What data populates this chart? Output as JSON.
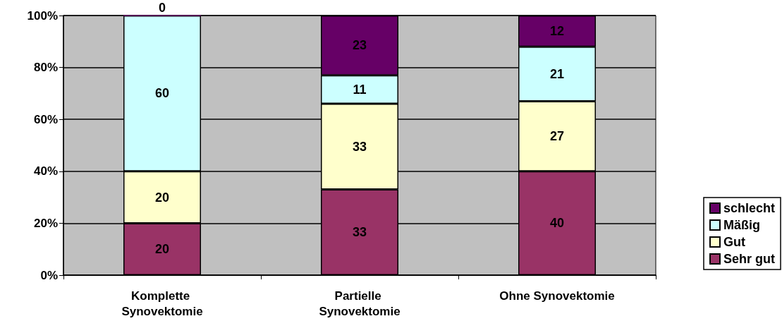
{
  "chart_data": {
    "type": "bar",
    "stacked": true,
    "categories": [
      "Komplette Synovektomie",
      "Partielle Synovektomie",
      "Ohne Synovektomie"
    ],
    "series": [
      {
        "name": "Sehr gut",
        "color": "#993366",
        "values": [
          20,
          33,
          40
        ]
      },
      {
        "name": "Gut",
        "color": "#ffffcc",
        "values": [
          20,
          33,
          27
        ]
      },
      {
        "name": "Mäßig",
        "color": "#ccffff",
        "values": [
          60,
          11,
          21
        ]
      },
      {
        "name": "schlecht",
        "color": "#660066",
        "values": [
          0,
          23,
          12
        ]
      }
    ],
    "ylim": [
      0,
      100
    ],
    "yticks": [
      {
        "value": 0,
        "label": "0%"
      },
      {
        "value": 20,
        "label": "20%"
      },
      {
        "value": 40,
        "label": "40%"
      },
      {
        "value": 60,
        "label": "60%"
      },
      {
        "value": 80,
        "label": "80%"
      },
      {
        "value": 100,
        "label": "100%"
      }
    ],
    "grid": "y",
    "legend": "bottom right",
    "data_labels": true
  }
}
